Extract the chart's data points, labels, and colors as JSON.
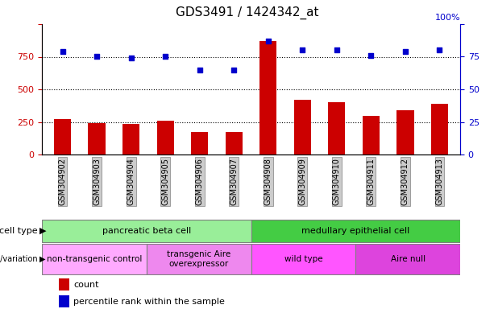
{
  "title": "GDS3491 / 1424342_at",
  "samples": [
    "GSM304902",
    "GSM304903",
    "GSM304904",
    "GSM304905",
    "GSM304906",
    "GSM304907",
    "GSM304908",
    "GSM304909",
    "GSM304910",
    "GSM304911",
    "GSM304912",
    "GSM304913"
  ],
  "counts": [
    270,
    240,
    235,
    260,
    170,
    170,
    870,
    420,
    400,
    295,
    340,
    390
  ],
  "percentile": [
    79,
    75,
    74,
    75,
    65,
    65,
    87,
    80,
    80,
    76,
    79,
    80
  ],
  "ylim_left": [
    0,
    1000
  ],
  "ylim_right": [
    0,
    100
  ],
  "yticks_left": [
    0,
    250,
    500,
    750,
    1000
  ],
  "yticks_right": [
    0,
    25,
    50,
    75,
    100
  ],
  "bar_color": "#cc0000",
  "dot_color": "#0000cc",
  "grid_lines": [
    250,
    500,
    750
  ],
  "cell_type_groups": [
    {
      "label": "pancreatic beta cell",
      "start": 0,
      "end": 6,
      "color": "#99ee99"
    },
    {
      "label": "medullary epithelial cell",
      "start": 6,
      "end": 12,
      "color": "#44cc44"
    }
  ],
  "genotype_groups": [
    {
      "label": "non-transgenic control",
      "start": 0,
      "end": 3,
      "color": "#ffaaff"
    },
    {
      "label": "transgenic Aire\noverexpressor",
      "start": 3,
      "end": 6,
      "color": "#ee88ee"
    },
    {
      "label": "wild type",
      "start": 6,
      "end": 9,
      "color": "#ff55ff"
    },
    {
      "label": "Aire null",
      "start": 9,
      "end": 12,
      "color": "#dd44dd"
    }
  ],
  "left_axis_color": "#cc0000",
  "right_axis_color": "#0000cc",
  "tick_label_bg": "#cccccc",
  "bar_width": 0.5
}
